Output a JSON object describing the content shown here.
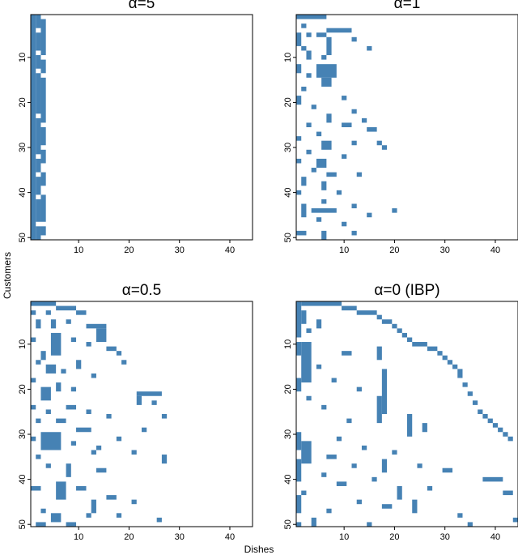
{
  "xlabel": "Dishes",
  "ylabel": "Customers",
  "chart_data": [
    {
      "type": "matrix",
      "title": "α=5",
      "color": "#4682b4",
      "xlim": [
        0.5,
        44.5
      ],
      "ylim": [
        50.5,
        0.5
      ],
      "xticks": [
        10,
        20,
        30,
        40
      ],
      "yticks": [
        10,
        20,
        30,
        40,
        50
      ],
      "blocks": [
        [
          1,
          1,
          1,
          50
        ],
        [
          2,
          2,
          1,
          3
        ],
        [
          2,
          2,
          5,
          8
        ],
        [
          2,
          2,
          10,
          12
        ],
        [
          2,
          2,
          14,
          22
        ],
        [
          2,
          2,
          24,
          31
        ],
        [
          2,
          2,
          33,
          35
        ],
        [
          2,
          2,
          37,
          40
        ],
        [
          2,
          2,
          42,
          46
        ],
        [
          2,
          2,
          48,
          50
        ],
        [
          3,
          3,
          2,
          9
        ],
        [
          3,
          3,
          11,
          13
        ],
        [
          3,
          3,
          15,
          24
        ],
        [
          3,
          3,
          26,
          29
        ],
        [
          3,
          3,
          31,
          33
        ],
        [
          3,
          3,
          36,
          38
        ],
        [
          3,
          3,
          41,
          46
        ],
        [
          3,
          3,
          48,
          49
        ]
      ]
    },
    {
      "type": "matrix",
      "title": "α=1",
      "color": "#4682b4",
      "xlim": [
        0.5,
        44.5
      ],
      "ylim": [
        50.5,
        0.5
      ],
      "xticks": [
        10,
        20,
        30,
        40
      ],
      "yticks": [
        10,
        20,
        30,
        40,
        50
      ],
      "blocks": [
        [
          1,
          6,
          1,
          1
        ],
        [
          2,
          2,
          3,
          3
        ],
        [
          7,
          11,
          4,
          4
        ],
        [
          1,
          1,
          5,
          7
        ],
        [
          3,
          3,
          5,
          5
        ],
        [
          5,
          6,
          5,
          5
        ],
        [
          7,
          7,
          6,
          9
        ],
        [
          12,
          12,
          6,
          6
        ],
        [
          2,
          2,
          8,
          8
        ],
        [
          15,
          15,
          8,
          8
        ],
        [
          3,
          3,
          9,
          10
        ],
        [
          6,
          6,
          10,
          10
        ],
        [
          1,
          1,
          12,
          13
        ],
        [
          5,
          8,
          12,
          14
        ],
        [
          3,
          3,
          14,
          14
        ],
        [
          6,
          7,
          15,
          16
        ],
        [
          2,
          2,
          17,
          17
        ],
        [
          1,
          1,
          19,
          20
        ],
        [
          10,
          10,
          19,
          19
        ],
        [
          4,
          4,
          21,
          21
        ],
        [
          12,
          12,
          22,
          22
        ],
        [
          7,
          7,
          23,
          24
        ],
        [
          14,
          14,
          24,
          24
        ],
        [
          3,
          3,
          25,
          25
        ],
        [
          10,
          11,
          25,
          25
        ],
        [
          15,
          16,
          26,
          26
        ],
        [
          5,
          5,
          27,
          27
        ],
        [
          1,
          1,
          28,
          28
        ],
        [
          6,
          7,
          29,
          30
        ],
        [
          12,
          12,
          29,
          29
        ],
        [
          17,
          17,
          29,
          29
        ],
        [
          3,
          3,
          31,
          31
        ],
        [
          18,
          18,
          30,
          30
        ],
        [
          1,
          1,
          33,
          33
        ],
        [
          5,
          6,
          33,
          34
        ],
        [
          10,
          10,
          32,
          32
        ],
        [
          4,
          4,
          35,
          35
        ],
        [
          7,
          8,
          36,
          36
        ],
        [
          13,
          13,
          36,
          36
        ],
        [
          2,
          2,
          37,
          38
        ],
        [
          6,
          6,
          38,
          39
        ],
        [
          1,
          1,
          40,
          40
        ],
        [
          9,
          9,
          40,
          40
        ],
        [
          6,
          6,
          42,
          42
        ],
        [
          2,
          2,
          43,
          45
        ],
        [
          4,
          8,
          44,
          44
        ],
        [
          12,
          12,
          43,
          43
        ],
        [
          20,
          20,
          44,
          44
        ],
        [
          15,
          15,
          45,
          45
        ],
        [
          5,
          5,
          46,
          46
        ],
        [
          10,
          10,
          47,
          47
        ],
        [
          1,
          2,
          49,
          49
        ],
        [
          6,
          6,
          49,
          50
        ],
        [
          12,
          12,
          49,
          49
        ]
      ]
    },
    {
      "type": "matrix",
      "title": "α=0.5",
      "color": "#4682b4",
      "xlim": [
        0.5,
        44.5
      ],
      "ylim": [
        50.5,
        0.5
      ],
      "xticks": [
        10,
        20,
        30,
        40
      ],
      "yticks": [
        10,
        20,
        30,
        40,
        50
      ],
      "blocks": [
        [
          1,
          5,
          1,
          1
        ],
        [
          6,
          9,
          2,
          2
        ],
        [
          1,
          1,
          3,
          3
        ],
        [
          4,
          4,
          3,
          3
        ],
        [
          10,
          11,
          3,
          3
        ],
        [
          2,
          2,
          5,
          6
        ],
        [
          5,
          5,
          5,
          6
        ],
        [
          8,
          8,
          5,
          5
        ],
        [
          12,
          15,
          6,
          6
        ],
        [
          1,
          1,
          9,
          9
        ],
        [
          5,
          6,
          8,
          12
        ],
        [
          9,
          9,
          9,
          9
        ],
        [
          14,
          15,
          7,
          9
        ],
        [
          12,
          12,
          10,
          10
        ],
        [
          16,
          17,
          11,
          11
        ],
        [
          3,
          3,
          12,
          13
        ],
        [
          2,
          2,
          14,
          14
        ],
        [
          4,
          5,
          15,
          16
        ],
        [
          10,
          10,
          14,
          15
        ],
        [
          18,
          18,
          12,
          12
        ],
        [
          19,
          19,
          14,
          14
        ],
        [
          7,
          7,
          16,
          16
        ],
        [
          13,
          13,
          17,
          17
        ],
        [
          1,
          1,
          18,
          18
        ],
        [
          3,
          4,
          20,
          22
        ],
        [
          6,
          6,
          19,
          20
        ],
        [
          9,
          9,
          20,
          20
        ],
        [
          22,
          26,
          21,
          21
        ],
        [
          22,
          22,
          22,
          23
        ],
        [
          25,
          25,
          23,
          23
        ],
        [
          1,
          1,
          24,
          24
        ],
        [
          8,
          9,
          24,
          24
        ],
        [
          12,
          12,
          25,
          25
        ],
        [
          4,
          4,
          25,
          25
        ],
        [
          16,
          16,
          26,
          26
        ],
        [
          27,
          27,
          26,
          26
        ],
        [
          2,
          2,
          27,
          27
        ],
        [
          6,
          7,
          27,
          27
        ],
        [
          10,
          12,
          29,
          29
        ],
        [
          3,
          6,
          30,
          33
        ],
        [
          1,
          1,
          31,
          31
        ],
        [
          9,
          9,
          32,
          32
        ],
        [
          23,
          23,
          29,
          29
        ],
        [
          18,
          18,
          31,
          31
        ],
        [
          14,
          14,
          33,
          33
        ],
        [
          13,
          13,
          34,
          34
        ],
        [
          2,
          2,
          35,
          35
        ],
        [
          21,
          21,
          34,
          34
        ],
        [
          27,
          27,
          35,
          36
        ],
        [
          4,
          4,
          37,
          37
        ],
        [
          8,
          8,
          37,
          39
        ],
        [
          14,
          15,
          38,
          38
        ],
        [
          6,
          7,
          41,
          44
        ],
        [
          1,
          2,
          42,
          42
        ],
        [
          10,
          11,
          42,
          42
        ],
        [
          16,
          17,
          44,
          44
        ],
        [
          13,
          13,
          45,
          47
        ],
        [
          21,
          21,
          45,
          45
        ],
        [
          3,
          3,
          47,
          47
        ],
        [
          5,
          6,
          48,
          49
        ],
        [
          12,
          12,
          48,
          48
        ],
        [
          18,
          18,
          48,
          48
        ],
        [
          26,
          26,
          49,
          49
        ],
        [
          2,
          3,
          50,
          50
        ],
        [
          8,
          9,
          50,
          50
        ]
      ]
    },
    {
      "type": "matrix",
      "title": "α=0 (IBP)",
      "color": "#4682b4",
      "xlim": [
        0.5,
        44.5
      ],
      "ylim": [
        50.5,
        0.5
      ],
      "xticks": [
        10,
        20,
        30,
        40
      ],
      "yticks": [
        10,
        20,
        30,
        40,
        50
      ],
      "blocks": [
        [
          1,
          1,
          1,
          8
        ],
        [
          1,
          1,
          10,
          12
        ],
        [
          1,
          1,
          18,
          20
        ],
        [
          1,
          1,
          30,
          33
        ],
        [
          1,
          1,
          36,
          40
        ],
        [
          1,
          1,
          44,
          47
        ],
        [
          1,
          1,
          50,
          50
        ],
        [
          2,
          9,
          1,
          1
        ],
        [
          10,
          12,
          2,
          2
        ],
        [
          2,
          2,
          3,
          5
        ],
        [
          13,
          16,
          3,
          3
        ],
        [
          17,
          17,
          4,
          4
        ],
        [
          18,
          19,
          5,
          5
        ],
        [
          5,
          5,
          5,
          6
        ],
        [
          20,
          20,
          6,
          6
        ],
        [
          3,
          3,
          7,
          7
        ],
        [
          21,
          21,
          7,
          7
        ],
        [
          22,
          22,
          8,
          8
        ],
        [
          23,
          23,
          9,
          9
        ],
        [
          2,
          3,
          10,
          18
        ],
        [
          24,
          26,
          10,
          10
        ],
        [
          27,
          28,
          11,
          11
        ],
        [
          17,
          17,
          11,
          13
        ],
        [
          29,
          29,
          12,
          12
        ],
        [
          10,
          11,
          12,
          12
        ],
        [
          30,
          30,
          13,
          13
        ],
        [
          31,
          31,
          14,
          14
        ],
        [
          32,
          32,
          15,
          15
        ],
        [
          5,
          5,
          15,
          15
        ],
        [
          18,
          18,
          16,
          25
        ],
        [
          33,
          33,
          16,
          17
        ],
        [
          8,
          8,
          18,
          18
        ],
        [
          34,
          34,
          19,
          19
        ],
        [
          13,
          13,
          20,
          20
        ],
        [
          35,
          35,
          21,
          21
        ],
        [
          3,
          3,
          22,
          22
        ],
        [
          17,
          17,
          22,
          27
        ],
        [
          36,
          36,
          23,
          23
        ],
        [
          6,
          6,
          24,
          24
        ],
        [
          37,
          37,
          25,
          25
        ],
        [
          38,
          38,
          26,
          26
        ],
        [
          11,
          11,
          27,
          27
        ],
        [
          39,
          39,
          27,
          27
        ],
        [
          40,
          40,
          28,
          28
        ],
        [
          23,
          23,
          26,
          30
        ],
        [
          26,
          26,
          28,
          29
        ],
        [
          41,
          41,
          29,
          29
        ],
        [
          42,
          42,
          30,
          30
        ],
        [
          9,
          9,
          31,
          31
        ],
        [
          43,
          43,
          31,
          31
        ],
        [
          2,
          3,
          32,
          36
        ],
        [
          14,
          14,
          33,
          33
        ],
        [
          20,
          20,
          34,
          34
        ],
        [
          7,
          8,
          35,
          35
        ],
        [
          18,
          18,
          36,
          38
        ],
        [
          12,
          12,
          37,
          37
        ],
        [
          25,
          25,
          37,
          37
        ],
        [
          30,
          31,
          38,
          38
        ],
        [
          6,
          6,
          39,
          39
        ],
        [
          16,
          16,
          40,
          40
        ],
        [
          38,
          41,
          40,
          40
        ],
        [
          9,
          10,
          41,
          41
        ],
        [
          21,
          21,
          42,
          44
        ],
        [
          2,
          2,
          43,
          43
        ],
        [
          27,
          27,
          42,
          42
        ],
        [
          42,
          43,
          43,
          43
        ],
        [
          13,
          13,
          45,
          45
        ],
        [
          18,
          19,
          46,
          46
        ],
        [
          24,
          24,
          45,
          47
        ],
        [
          7,
          7,
          47,
          47
        ],
        [
          33,
          33,
          48,
          48
        ],
        [
          44,
          44,
          49,
          49
        ],
        [
          4,
          4,
          49,
          50
        ],
        [
          15,
          15,
          50,
          50
        ],
        [
          35,
          35,
          50,
          50
        ]
      ]
    }
  ]
}
